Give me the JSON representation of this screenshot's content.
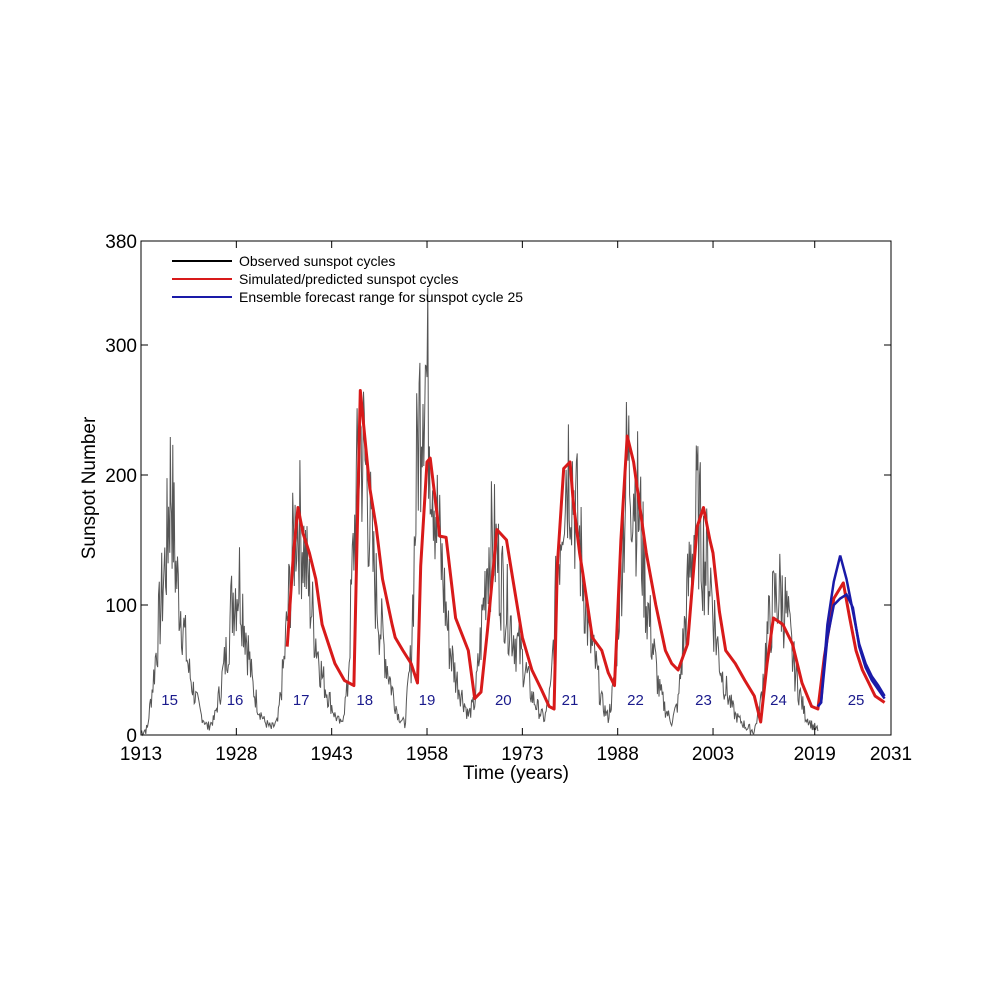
{
  "chart_data": {
    "type": "line",
    "title": "",
    "xlabel": "Time (years)",
    "ylabel": "Sunspot Number",
    "xlim": [
      1913,
      2031
    ],
    "ylim": [
      0,
      380
    ],
    "x_ticks": [
      1913,
      1928,
      1943,
      1958,
      1973,
      1988,
      2003,
      2019,
      2031
    ],
    "y_ticks": [
      0,
      100,
      200,
      300,
      380
    ],
    "grid": false,
    "legend_position": "top-left",
    "colors": {
      "observed": "#555555",
      "simulated": "#d81a1a",
      "ensemble": "#1a1aa8",
      "cycle_labels": "#1a1a8c"
    },
    "legend": [
      {
        "label": "Observed sunspot cycles",
        "color": "#000000"
      },
      {
        "label": "Simulated/predicted sunspot cycles",
        "color": "#d81a1a"
      },
      {
        "label": "Ensemble forecast range for sunspot cycle 25",
        "color": "#1a1aa8"
      }
    ],
    "series": [
      {
        "name": "Observed sunspot cycles",
        "x": [
          1913.0,
          1914.0,
          1915.0,
          1916.0,
          1917.0,
          1917.7,
          1918.5,
          1919.5,
          1920.5,
          1921.5,
          1922.5,
          1923.5,
          1924.5,
          1925.5,
          1926.5,
          1927.5,
          1928.5,
          1929.5,
          1930.5,
          1931.5,
          1932.5,
          1933.5,
          1934.5,
          1935.5,
          1936.5,
          1937.5,
          1938.5,
          1939.5,
          1940.5,
          1941.5,
          1942.5,
          1943.5,
          1944.5,
          1945.5,
          1946.5,
          1947.5,
          1948.5,
          1949.5,
          1950.5,
          1951.5,
          1952.5,
          1953.5,
          1954.5,
          1955.5,
          1956.5,
          1957.5,
          1958.5,
          1959.5,
          1960.5,
          1961.5,
          1962.5,
          1963.5,
          1964.5,
          1965.5,
          1966.5,
          1967.5,
          1968.5,
          1969.5,
          1970.5,
          1971.5,
          1972.5,
          1973.5,
          1974.5,
          1975.5,
          1976.5,
          1977.5,
          1978.5,
          1979.5,
          1980.5,
          1981.5,
          1982.5,
          1983.5,
          1984.5,
          1985.5,
          1986.5,
          1987.5,
          1988.5,
          1989.5,
          1990.5,
          1991.5,
          1992.5,
          1993.5,
          1994.5,
          1995.5,
          1996.5,
          1997.5,
          1998.5,
          1999.5,
          2000.5,
          2001.5,
          2002.5,
          2003.5,
          2004.5,
          2005.5,
          2006.5,
          2007.5,
          2008.5,
          2009.5,
          2010.5,
          2011.5,
          2012.5,
          2013.5,
          2014.5,
          2015.5,
          2016.5,
          2017.5,
          2018.5,
          2019.5
        ],
        "y": [
          2,
          5,
          45,
          95,
          140,
          200,
          125,
          90,
          50,
          30,
          15,
          6,
          12,
          35,
          65,
          110,
          120,
          80,
          40,
          20,
          10,
          5,
          10,
          55,
          120,
          170,
          150,
          110,
          75,
          45,
          30,
          15,
          8,
          35,
          150,
          230,
          200,
          130,
          90,
          60,
          35,
          15,
          8,
          60,
          220,
          300,
          240,
          170,
          120,
          70,
          45,
          30,
          15,
          25,
          75,
          140,
          150,
          125,
          100,
          80,
          65,
          50,
          30,
          20,
          12,
          35,
          125,
          200,
          215,
          170,
          125,
          75,
          55,
          25,
          13,
          40,
          130,
          210,
          200,
          165,
          105,
          70,
          35,
          20,
          10,
          25,
          80,
          135,
          175,
          140,
          125,
          75,
          45,
          28,
          15,
          10,
          5,
          3,
          25,
          75,
          100,
          110,
          95,
          60,
          35,
          15,
          8,
          3
        ]
      },
      {
        "name": "Simulated/predicted sunspot cycles",
        "x": [
          1936.0,
          1937.0,
          1937.7,
          1938.5,
          1939.5,
          1940.5,
          1941.5,
          1942.5,
          1943.5,
          1945.0,
          1946.5,
          1947.5,
          1948.5,
          1949.0,
          1950.0,
          1951.0,
          1952.5,
          1953.0,
          1954.2,
          1955.5,
          1956.5,
          1957.0,
          1958.0,
          1958.5,
          1960.0,
          1961.0,
          1962.5,
          1964.5,
          1965.5,
          1966.5,
          1967.5,
          1969.0,
          1970.5,
          1971.5,
          1973.0,
          1974.5,
          1976.0,
          1977.2,
          1978.0,
          1978.5,
          1979.5,
          1980.5,
          1981.0,
          1982.0,
          1982.5,
          1984.0,
          1985.5,
          1986.5,
          1987.5,
          1988.5,
          1989.5,
          1990.5,
          1991.5,
          1992.5,
          1994.0,
          1995.5,
          1996.5,
          1997.5,
          1999.0,
          2000.5,
          2001.5,
          2002.5,
          2003.0,
          2004.0,
          2005.0,
          2006.5,
          2008.0,
          2009.5,
          2010.5,
          2011.5,
          2012.5,
          2014.0,
          2015.5,
          2017.0,
          2018.5,
          2019.5,
          2020.5,
          2022.0,
          2023.5,
          2024.5,
          2025.5,
          2026.5,
          2027.5,
          2028.5,
          2030.0
        ],
        "y": [
          68,
          140,
          175,
          155,
          140,
          120,
          85,
          70,
          55,
          42,
          38,
          265,
          215,
          190,
          160,
          120,
          85,
          75,
          65,
          55,
          40,
          130,
          210,
          213,
          153,
          152,
          90,
          65,
          28,
          33,
          80,
          158,
          150,
          120,
          75,
          50,
          35,
          22,
          20,
          130,
          205,
          210,
          180,
          140,
          125,
          75,
          65,
          48,
          38,
          150,
          230,
          210,
          175,
          140,
          100,
          65,
          55,
          50,
          70,
          160,
          175,
          150,
          140,
          95,
          65,
          55,
          42,
          30,
          10,
          55,
          90,
          85,
          70,
          40,
          22,
          20,
          60,
          105,
          117,
          90,
          65,
          50,
          40,
          30,
          25
        ]
      },
      {
        "name": "Ensemble forecast range for sunspot cycle 25",
        "x": [
          2019.5,
          2020.0,
          2021.0,
          2022.0,
          2023.0,
          2024.0,
          2025.0,
          2026.0,
          2027.0,
          2028.0,
          2029.0,
          2030.0
        ],
        "y": [
          22,
          25,
          85,
          118,
          138,
          120,
          95,
          70,
          55,
          45,
          38,
          30
        ]
      }
    ],
    "ensemble_lower": {
      "x": [
        2019.5,
        2020.0,
        2021.0,
        2022.0,
        2023.0,
        2024.0,
        2025.0,
        2026.0,
        2027.0,
        2028.0,
        2029.0,
        2030.0
      ],
      "y": [
        22,
        25,
        75,
        100,
        105,
        108,
        98,
        68,
        52,
        42,
        35,
        28
      ]
    },
    "cycle_labels": [
      {
        "text": "15",
        "x": 1917.5
      },
      {
        "text": "16",
        "x": 1927.8
      },
      {
        "text": "17",
        "x": 1938.2
      },
      {
        "text": "18",
        "x": 1948.2
      },
      {
        "text": "19",
        "x": 1958.0
      },
      {
        "text": "20",
        "x": 1970.0
      },
      {
        "text": "21",
        "x": 1980.5
      },
      {
        "text": "22",
        "x": 1990.8
      },
      {
        "text": "23",
        "x": 2001.5
      },
      {
        "text": "24",
        "x": 2013.3
      },
      {
        "text": "25",
        "x": 2025.5
      }
    ],
    "cycle_label_y": 27
  }
}
